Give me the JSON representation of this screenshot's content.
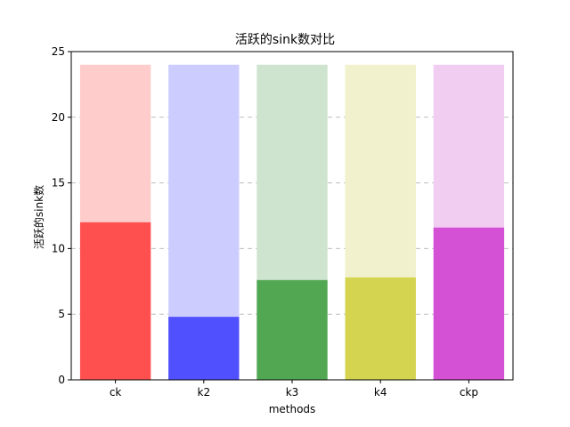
{
  "chart_data": {
    "type": "bar",
    "title": "活跃的sink数对比",
    "xlabel": "methods",
    "ylabel": "活跃的sink数",
    "categories": [
      "ck",
      "k2",
      "k3",
      "k4",
      "ckp"
    ],
    "ylim": [
      0,
      25
    ],
    "yticks": [
      0,
      5,
      10,
      15,
      20,
      25
    ],
    "grid": "y",
    "series": [
      {
        "values": [
          24,
          24,
          24,
          24,
          24
        ],
        "colors": [
          "#ffcccc",
          "#ccccff",
          "#cfe4cf",
          "#f1f1cd",
          "#f1cdf1"
        ]
      },
      {
        "values": [
          12.0,
          4.8,
          7.6,
          7.8,
          11.6
        ],
        "colors": [
          "#ff5050",
          "#5050ff",
          "#52a852",
          "#d4d450",
          "#d450d4"
        ]
      }
    ]
  }
}
